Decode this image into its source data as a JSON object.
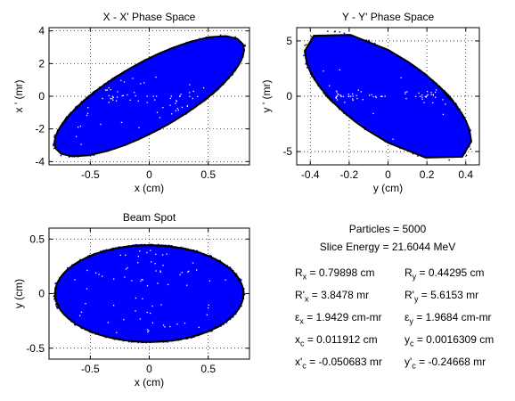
{
  "chart_data": [
    {
      "type": "scatter",
      "id": "xxp",
      "title": "X - X' Phase Space",
      "xlabel": "x (cm)",
      "ylabel": "x ' (mr)",
      "xlim": [
        -0.85,
        0.85
      ],
      "ylim": [
        -4.2,
        4.2
      ],
      "xticks": [
        {
          "v": -0.5,
          "label": "-0.5"
        },
        {
          "v": 0,
          "label": "0"
        },
        {
          "v": 0.5,
          "label": "0.5"
        }
      ],
      "yticks": [
        {
          "v": -4,
          "label": "-4"
        },
        {
          "v": -2,
          "label": "-2"
        },
        {
          "v": 0,
          "label": "0"
        },
        {
          "v": 2,
          "label": "2"
        },
        {
          "v": 4,
          "label": "4"
        }
      ],
      "grid": true,
      "ellipse": {
        "points": [
          [
            0.65,
            3.75
          ],
          [
            -0.62,
            -3.75
          ],
          [
            -0.79,
            -2.9
          ],
          [
            0.79,
            2.9
          ],
          [
            0.3,
            3.2
          ],
          [
            -0.3,
            -3.2
          ],
          [
            -0.7,
            -1.3
          ],
          [
            0.7,
            1.3
          ]
        ]
      },
      "particle_color": "#0000ff",
      "outline_color": "#000000"
    },
    {
      "type": "scatter",
      "id": "yyp",
      "title": "Y - Y' Phase Space",
      "xlabel": "y (cm)",
      "ylabel": "y ' (mr)",
      "xlim": [
        -0.47,
        0.47
      ],
      "ylim": [
        -6.2,
        6.2
      ],
      "xticks": [
        {
          "v": -0.4,
          "label": "-0.4"
        },
        {
          "v": -0.2,
          "label": "-0.2"
        },
        {
          "v": 0,
          "label": "0"
        },
        {
          "v": 0.2,
          "label": "0.2"
        },
        {
          "v": 0.4,
          "label": "0.4"
        }
      ],
      "yticks": [
        {
          "v": -5,
          "label": "-5"
        },
        {
          "v": 0,
          "label": "0"
        },
        {
          "v": 5,
          "label": "5"
        }
      ],
      "grid": true,
      "ellipse": {
        "points": [
          [
            -0.3,
            5.6
          ],
          [
            0.3,
            -5.6
          ],
          [
            -0.44,
            4.2
          ],
          [
            0.44,
            -4.2
          ],
          [
            -0.1,
            5.1
          ],
          [
            0.1,
            -5.1
          ],
          [
            0.35,
            -1.0
          ],
          [
            -0.35,
            1.0
          ]
        ]
      },
      "particle_color": "#0000ff",
      "outline_color": "#000000"
    },
    {
      "type": "scatter",
      "id": "spot",
      "title": "Beam Spot",
      "xlabel": "x (cm)",
      "ylabel": "y (cm)",
      "xlim": [
        -0.85,
        0.85
      ],
      "ylim": [
        -0.6,
        0.6
      ],
      "xticks": [
        {
          "v": -0.5,
          "label": "-0.5"
        },
        {
          "v": 0,
          "label": "0"
        },
        {
          "v": 0.5,
          "label": "0.5"
        }
      ],
      "yticks": [
        {
          "v": -0.5,
          "label": "-0.5"
        },
        {
          "v": 0,
          "label": "0"
        },
        {
          "v": 0.5,
          "label": "0.5"
        }
      ],
      "grid": true,
      "ellipse": {
        "points": [
          [
            0.79898,
            0
          ],
          [
            -0.79898,
            0
          ],
          [
            0,
            0.44295
          ],
          [
            0,
            -0.44295
          ],
          [
            0.565,
            0.313
          ],
          [
            -0.565,
            -0.313
          ],
          [
            0.565,
            -0.313
          ],
          [
            -0.565,
            0.313
          ]
        ]
      },
      "particle_color": "#0000ff",
      "outline_color": "#000000"
    }
  ],
  "stats": {
    "particles": "Particles = 5000",
    "slice_energy": "Slice Energy = 21.6044 MeV",
    "rows": [
      {
        "lsym": "R",
        "lsub": "x",
        "lval": " = 0.79898 cm",
        "rsym": "R",
        "rsub": "y",
        "rval": " = 0.44295 cm"
      },
      {
        "lsym": "R'",
        "lsub": "x",
        "lval": " = 3.8478 mr",
        "rsym": "R'",
        "rsub": "y",
        "rval": " = 5.6153 mr"
      },
      {
        "lsym": "ε",
        "lsub": "x",
        "lval": " = 1.9429 cm-mr",
        "rsym": "ε",
        "rsub": "y",
        "rval": " = 1.9684 cm-mr"
      },
      {
        "lsym": "x",
        "lsub": "c",
        "lval": " = 0.011912 cm",
        "rsym": "y",
        "rsub": "c",
        "rval": " = 0.0016309 cm"
      },
      {
        "lsym": "x'",
        "lsub": "c",
        "lval": " = -0.050683 mr",
        "rsym": "y'",
        "rsub": "c",
        "rval": " = -0.24668 mr"
      }
    ]
  }
}
